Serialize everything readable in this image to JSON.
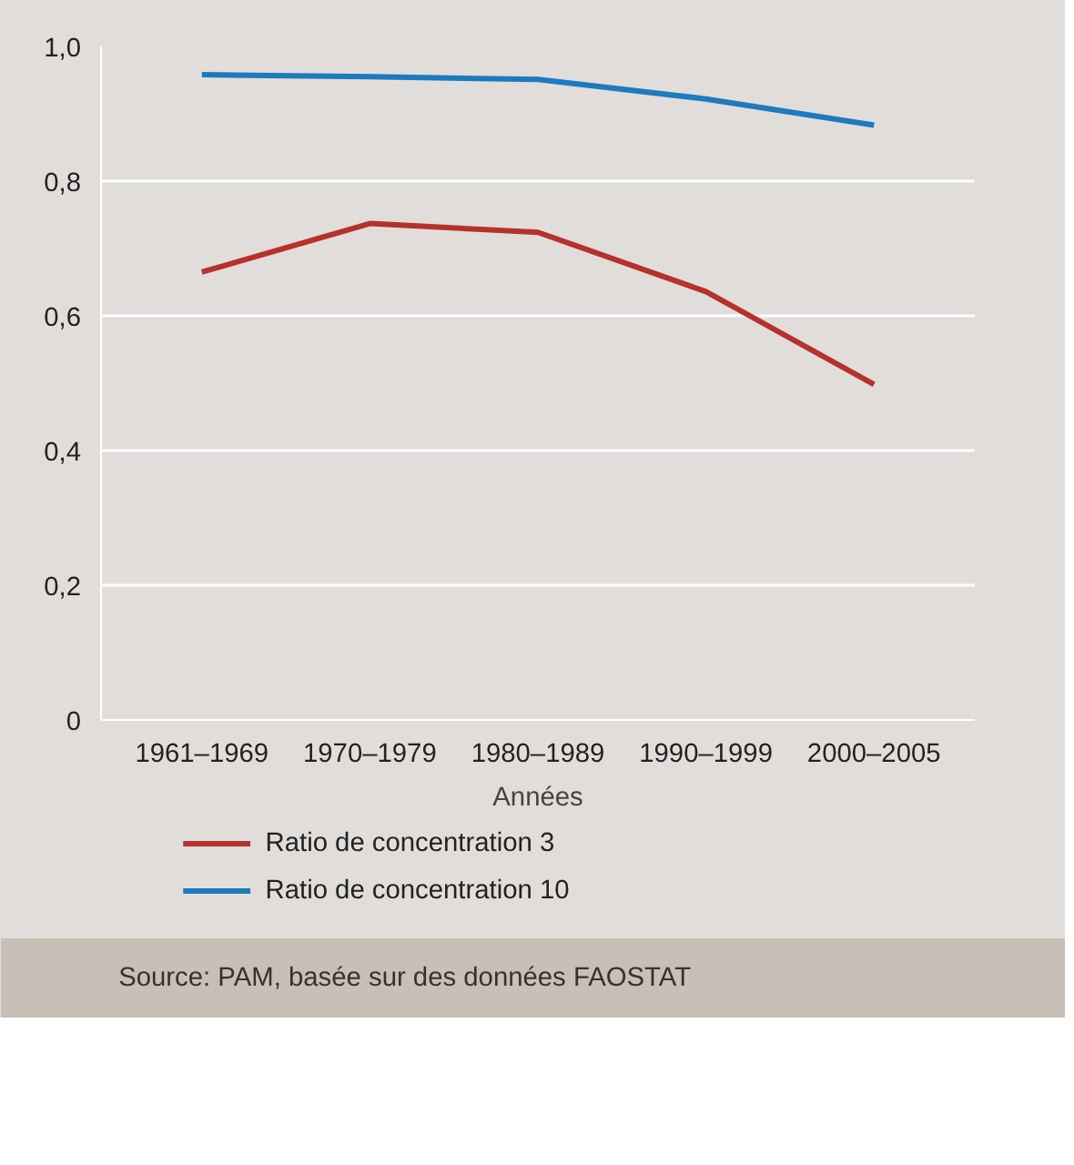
{
  "chart_data": {
    "type": "line",
    "xlabel": "Années",
    "categories": [
      "1961–1969",
      "1970–1979",
      "1980–1989",
      "1990–1999",
      "2000–2005"
    ],
    "series": [
      {
        "name": "Ratio de concentration 3",
        "color": "#b7312c",
        "values": [
          0.665,
          0.737,
          0.724,
          0.636,
          0.498
        ]
      },
      {
        "name": "Ratio de concentration 10",
        "color": "#1b7bbd",
        "values": [
          0.958,
          0.955,
          0.951,
          0.922,
          0.883
        ]
      }
    ],
    "ylim": [
      0,
      1
    ],
    "yticks": [
      {
        "value": 0,
        "label": "0"
      },
      {
        "value": 0.2,
        "label": "0,2"
      },
      {
        "value": 0.4,
        "label": "0,4"
      },
      {
        "value": 0.6,
        "label": "0,6"
      },
      {
        "value": 0.8,
        "label": "0,8"
      },
      {
        "value": 1,
        "label": "1,0"
      }
    ],
    "grid": "y",
    "legend": "bottom",
    "marker": "none",
    "line_style": "solid",
    "annotations": [
      "Source: PAM, basée sur des données FAOSTAT"
    ]
  }
}
